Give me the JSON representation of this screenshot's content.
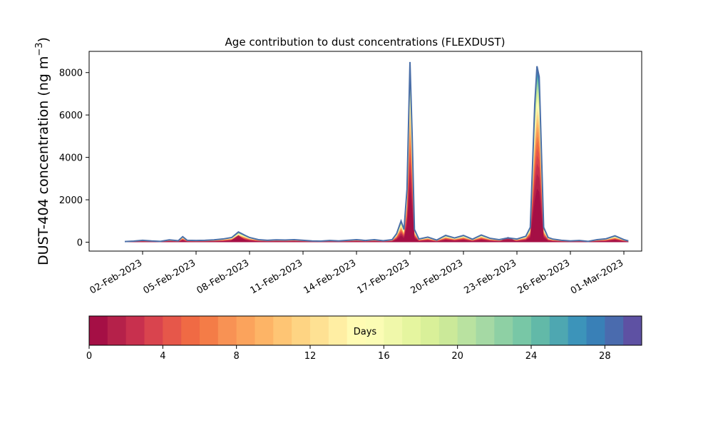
{
  "chart_data": {
    "type": "area",
    "title": "Age contribution to dust concentrations (FLEXDUST)",
    "ylabel_main": "DUST-404 concentration (ng m",
    "ylabel_sup": "−3",
    "ylabel_close": ")",
    "xlabel": "",
    "xlim": [
      "2023-01-30",
      "2023-03-02"
    ],
    "ylim": [
      -420,
      9000
    ],
    "grid": false,
    "x_tick_labels": [
      "02-Feb-2023",
      "05-Feb-2023",
      "08-Feb-2023",
      "11-Feb-2023",
      "14-Feb-2023",
      "17-Feb-2023",
      "20-Feb-2023",
      "23-Feb-2023",
      "26-Feb-2023",
      "01-Mar-2023"
    ],
    "x_tick_dates": [
      "2023-02-02",
      "2023-02-05",
      "2023-02-08",
      "2023-02-11",
      "2023-02-14",
      "2023-02-17",
      "2023-02-20",
      "2023-02-23",
      "2023-02-26",
      "2023-03-01"
    ],
    "y_ticks": [
      0,
      2000,
      4000,
      6000,
      8000
    ],
    "total_series": {
      "name": "",
      "color": "#4b6fa8",
      "points": [
        [
          "2023-02-01 00:00",
          30
        ],
        [
          "2023-02-01 12:00",
          50
        ],
        [
          "2023-02-02 00:00",
          90
        ],
        [
          "2023-02-02 12:00",
          60
        ],
        [
          "2023-02-03 00:00",
          40
        ],
        [
          "2023-02-03 12:00",
          110
        ],
        [
          "2023-02-04 00:00",
          70
        ],
        [
          "2023-02-04 06:00",
          260
        ],
        [
          "2023-02-04 12:00",
          90
        ],
        [
          "2023-02-05 00:00",
          80
        ],
        [
          "2023-02-05 12:00",
          90
        ],
        [
          "2023-02-06 00:00",
          110
        ],
        [
          "2023-02-06 12:00",
          150
        ],
        [
          "2023-02-07 00:00",
          220
        ],
        [
          "2023-02-07 09:00",
          480
        ],
        [
          "2023-02-07 18:00",
          320
        ],
        [
          "2023-02-08 00:00",
          220
        ],
        [
          "2023-02-08 12:00",
          120
        ],
        [
          "2023-02-09 00:00",
          90
        ],
        [
          "2023-02-09 12:00",
          110
        ],
        [
          "2023-02-10 00:00",
          100
        ],
        [
          "2023-02-10 12:00",
          120
        ],
        [
          "2023-02-11 00:00",
          90
        ],
        [
          "2023-02-11 12:00",
          60
        ],
        [
          "2023-02-12 00:00",
          50
        ],
        [
          "2023-02-12 12:00",
          80
        ],
        [
          "2023-02-13 00:00",
          60
        ],
        [
          "2023-02-13 12:00",
          90
        ],
        [
          "2023-02-14 00:00",
          120
        ],
        [
          "2023-02-14 12:00",
          80
        ],
        [
          "2023-02-15 00:00",
          120
        ],
        [
          "2023-02-15 12:00",
          70
        ],
        [
          "2023-02-16 00:00",
          120
        ],
        [
          "2023-02-16 06:00",
          400
        ],
        [
          "2023-02-16 12:00",
          1000
        ],
        [
          "2023-02-16 16:00",
          600
        ],
        [
          "2023-02-16 20:00",
          2500
        ],
        [
          "2023-02-17 00:00",
          8500
        ],
        [
          "2023-02-17 03:00",
          5000
        ],
        [
          "2023-02-17 06:00",
          600
        ],
        [
          "2023-02-17 12:00",
          150
        ],
        [
          "2023-02-18 00:00",
          240
        ],
        [
          "2023-02-18 12:00",
          100
        ],
        [
          "2023-02-19 00:00",
          320
        ],
        [
          "2023-02-19 12:00",
          200
        ],
        [
          "2023-02-20 00:00",
          320
        ],
        [
          "2023-02-20 12:00",
          140
        ],
        [
          "2023-02-21 00:00",
          340
        ],
        [
          "2023-02-21 12:00",
          180
        ],
        [
          "2023-02-22 00:00",
          120
        ],
        [
          "2023-02-22 12:00",
          200
        ],
        [
          "2023-02-23 00:00",
          150
        ],
        [
          "2023-02-23 12:00",
          280
        ],
        [
          "2023-02-23 18:00",
          700
        ],
        [
          "2023-02-24 00:00",
          6500
        ],
        [
          "2023-02-24 03:00",
          8300
        ],
        [
          "2023-02-24 06:00",
          7800
        ],
        [
          "2023-02-24 12:00",
          700
        ],
        [
          "2023-02-24 18:00",
          220
        ],
        [
          "2023-02-25 00:00",
          150
        ],
        [
          "2023-02-25 12:00",
          90
        ],
        [
          "2023-02-26 00:00",
          60
        ],
        [
          "2023-02-26 12:00",
          80
        ],
        [
          "2023-02-27 00:00",
          40
        ],
        [
          "2023-02-27 12:00",
          120
        ],
        [
          "2023-02-28 00:00",
          160
        ],
        [
          "2023-02-28 12:00",
          300
        ],
        [
          "2023-03-01 00:00",
          120
        ],
        [
          "2023-03-01 06:00",
          60
        ]
      ]
    },
    "young_peaks": [
      [
        "2023-02-07 09:00",
        330
      ],
      [
        "2023-02-17 00:00",
        2600
      ],
      [
        "2023-02-22 12:00",
        250
      ],
      [
        "2023-02-24 03:00",
        2300
      ]
    ],
    "colorbar": {
      "label": "Days",
      "vmin": 0,
      "vmax": 30,
      "tick_values": [
        0,
        4,
        8,
        12,
        16,
        20,
        24,
        28
      ],
      "tick_labels": [
        "0",
        "4",
        "8",
        "12",
        "16",
        "20",
        "24",
        "28"
      ],
      "colors": [
        "#a50f45",
        "#b5214a",
        "#c8304e",
        "#d9444e",
        "#e6574a",
        "#f06a44",
        "#f47c47",
        "#f89254",
        "#fba35c",
        "#fdb466",
        "#fec574",
        "#fed483",
        "#fee193",
        "#ffeea3",
        "#fffbb3",
        "#fbfcb4",
        "#f0f8aa",
        "#e5f59f",
        "#d9f099",
        "#cbe999",
        "#b9e2a0",
        "#a5d9a4",
        "#8ed0a4",
        "#78c7a6",
        "#62b9a8",
        "#4ea7b1",
        "#3c94ba",
        "#3980b7",
        "#4a6bae",
        "#5e51a3"
      ]
    }
  }
}
